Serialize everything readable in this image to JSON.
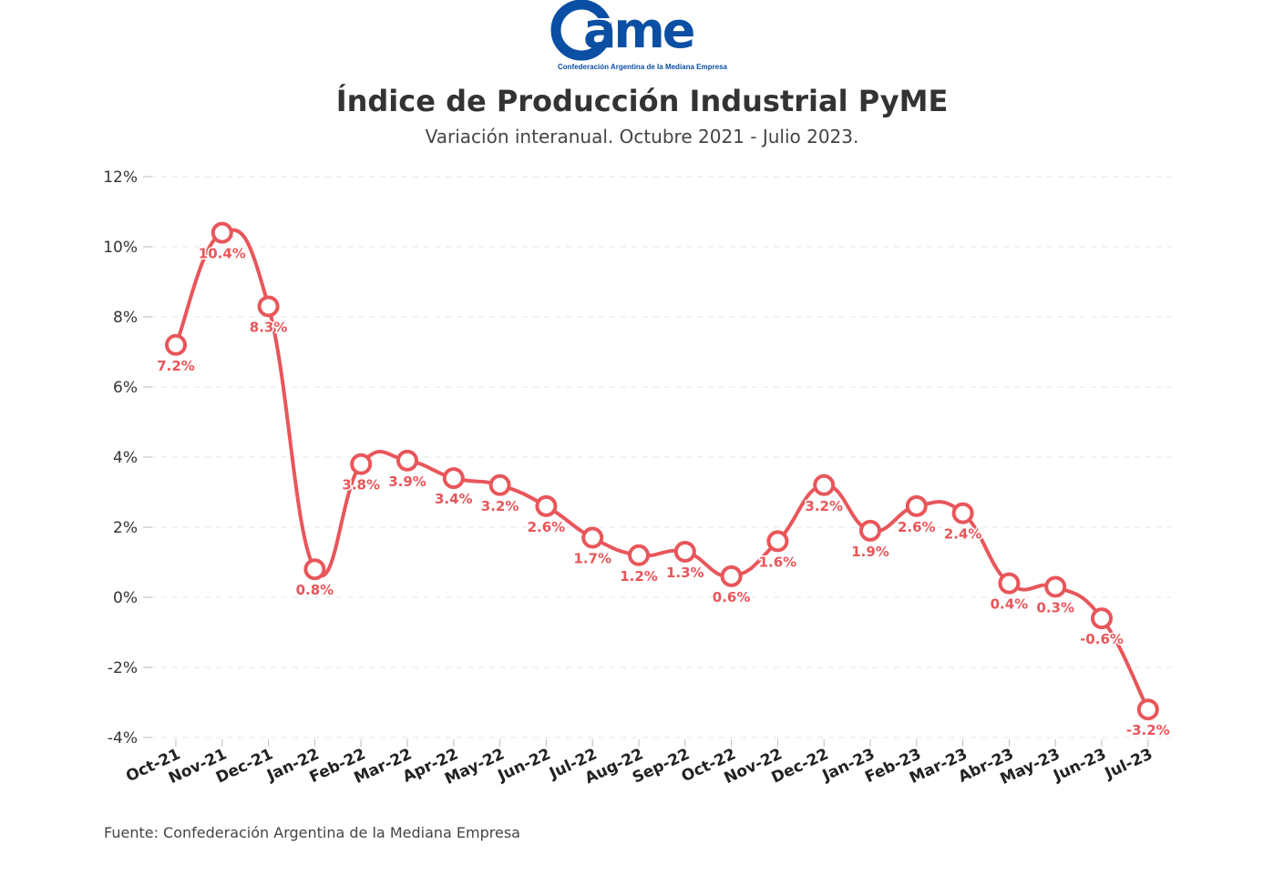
{
  "logo": {
    "wordmark": "ame",
    "tagline": "Confederación Argentina de la Mediana Empresa",
    "color": "#0a4fa3"
  },
  "header": {
    "title": "Índice de Producción Industrial PyME",
    "subtitle": "Variación interanual. Octubre 2021 - Julio 2023."
  },
  "footer": {
    "source": "Fuente: Confederación Argentina de la Mediana Empresa"
  },
  "chart_data": {
    "type": "line",
    "title": "Índice de Producción Industrial PyME",
    "subtitle": "Variación interanual. Octubre 2021 - Julio 2023.",
    "xlabel": "",
    "ylabel": "",
    "ylim": [
      -4,
      12
    ],
    "yticks": [
      12,
      10,
      8,
      6,
      4,
      2,
      0,
      -2,
      -4
    ],
    "ytick_labels": [
      "12%",
      "10%",
      "8%",
      "6%",
      "4%",
      "2%",
      "0%",
      "-2%",
      "-4%"
    ],
    "grid": "horizontal dashed",
    "line_color": "#e8565a",
    "categories": [
      "Oct-21",
      "Nov-21",
      "Dec-21",
      "Jan-22",
      "Feb-22",
      "Mar-22",
      "Apr-22",
      "May-22",
      "Jun-22",
      "Jul-22",
      "Aug-22",
      "Sep-22",
      "Oct-22",
      "Nov-22",
      "Dec-22",
      "Jan-23",
      "Feb-23",
      "Mar-23",
      "Abr-23",
      "May-23",
      "Jun-23",
      "Jul-23"
    ],
    "values": [
      7.2,
      10.4,
      8.3,
      0.8,
      3.8,
      3.9,
      3.4,
      3.2,
      2.6,
      1.7,
      1.2,
      1.3,
      0.6,
      1.6,
      3.2,
      1.9,
      2.6,
      2.4,
      0.4,
      0.3,
      -0.6,
      -3.2
    ],
    "value_labels": [
      "7.2%",
      "10.4%",
      "8.3%",
      "0.8%",
      "3.8%",
      "3.9%",
      "3.4%",
      "3.2%",
      "2.6%",
      "1.7%",
      "1.2%",
      "1.3%",
      "0.6%",
      "1.6%",
      "3.2%",
      "1.9%",
      "2.6%",
      "2.4%",
      "0.4%",
      "0.3%",
      "-0.6%",
      "-3.2%"
    ]
  }
}
